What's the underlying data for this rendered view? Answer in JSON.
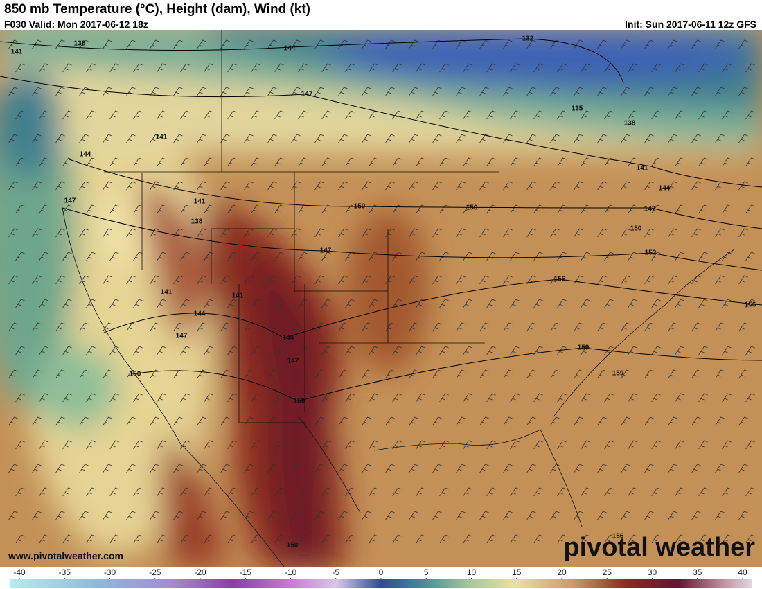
{
  "header": {
    "title": "850 mb Temperature (°C), Height (dam), Wind (kt)",
    "valid": "F030 Valid: Mon 2017-06-12 18z",
    "init": "Init: Sun 2017-06-11 12z GFS"
  },
  "map": {
    "contour_labels": [
      138,
      141,
      144,
      132,
      147,
      135,
      138,
      141,
      144,
      141,
      144,
      147,
      141,
      150,
      150,
      147,
      138,
      150,
      147,
      153,
      156,
      141,
      141,
      144,
      156,
      147,
      144,
      159,
      147,
      150,
      159,
      150,
      156,
      150
    ]
  },
  "footer": {
    "website": "www.pivotalweather.com",
    "logo": "pivotal weather"
  },
  "colorbar": {
    "ticks": [
      -40,
      -35,
      -30,
      -25,
      -20,
      -15,
      -10,
      -5,
      0,
      5,
      10,
      15,
      20,
      25,
      30,
      35,
      40
    ]
  }
}
